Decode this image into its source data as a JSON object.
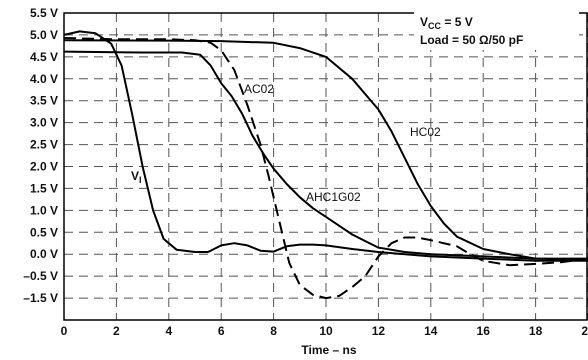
{
  "chart_data": {
    "type": "line",
    "xlabel": "Time – ns",
    "ylabel": "",
    "xlim": [
      0,
      20
    ],
    "ylim": [
      -2.5,
      5.5
    ],
    "x_ticks": [
      "0",
      "2",
      "4",
      "6",
      "8",
      "10",
      "12",
      "14",
      "16",
      "18",
      "20"
    ],
    "y_ticks": [
      "5.5 V",
      "5.0 V",
      "4.5 V",
      "4.0 V",
      "3.5 V",
      "3.0 V",
      "2.5 V",
      "2.0 V",
      "1.5 V",
      "1.0 V",
      "0.5 V",
      "0.0 V",
      "–0.5 V",
      "–1.5 V"
    ],
    "grid": true,
    "conditions": {
      "vcc_prefix": "V",
      "vcc_sub": "CC",
      "vcc_value": " = 5 V",
      "load": "Load = 50 Ω/50 pF"
    },
    "series": [
      {
        "name": "VI",
        "label_main": "V",
        "label_sub": "I",
        "style": "solid",
        "points": [
          [
            0,
            5.0
          ],
          [
            0.6,
            5.08
          ],
          [
            1.2,
            5.04
          ],
          [
            1.8,
            4.8
          ],
          [
            2.2,
            4.3
          ],
          [
            2.6,
            3.2
          ],
          [
            3.0,
            2.0
          ],
          [
            3.4,
            1.0
          ],
          [
            3.8,
            0.35
          ],
          [
            4.3,
            0.1
          ],
          [
            5.0,
            0.05
          ],
          [
            5.5,
            0.05
          ],
          [
            6.0,
            0.2
          ],
          [
            6.5,
            0.25
          ],
          [
            7.0,
            0.2
          ],
          [
            7.5,
            0.08
          ],
          [
            8.0,
            0.06
          ],
          [
            8.5,
            0.18
          ],
          [
            9.0,
            0.22
          ],
          [
            9.5,
            0.22
          ],
          [
            10.0,
            0.2
          ],
          [
            11.0,
            0.12
          ],
          [
            12.0,
            0.05
          ],
          [
            14.0,
            -0.05
          ],
          [
            16.0,
            -0.1
          ],
          [
            18.0,
            -0.15
          ],
          [
            20.0,
            -0.15
          ]
        ]
      },
      {
        "name": "AC02",
        "label_main": "AC02",
        "style": "dashed",
        "points": [
          [
            0,
            4.93
          ],
          [
            2.0,
            4.9
          ],
          [
            4.0,
            4.9
          ],
          [
            5.0,
            4.88
          ],
          [
            5.6,
            4.82
          ],
          [
            6.0,
            4.65
          ],
          [
            6.5,
            4.2
          ],
          [
            7.0,
            3.4
          ],
          [
            7.5,
            2.5
          ],
          [
            7.8,
            1.8
          ],
          [
            8.2,
            0.8
          ],
          [
            8.6,
            -0.2
          ],
          [
            9.0,
            -0.9
          ],
          [
            9.5,
            -1.35
          ],
          [
            10.0,
            -1.5
          ],
          [
            10.5,
            -1.4
          ],
          [
            11.0,
            -1.0
          ],
          [
            11.5,
            -0.5
          ],
          [
            12.0,
            -0.05
          ],
          [
            12.5,
            0.25
          ],
          [
            13.0,
            0.38
          ],
          [
            13.5,
            0.38
          ],
          [
            14.0,
            0.32
          ],
          [
            15.0,
            0.18
          ],
          [
            15.5,
            0.0
          ],
          [
            16.0,
            -0.15
          ],
          [
            17.0,
            -0.25
          ],
          [
            18.0,
            -0.22
          ],
          [
            19.0,
            -0.18
          ],
          [
            20.0,
            -0.1
          ]
        ]
      },
      {
        "name": "AHC1G02",
        "label_main": "AHC1G02",
        "style": "solid",
        "points": [
          [
            0,
            4.62
          ],
          [
            3.0,
            4.6
          ],
          [
            4.5,
            4.6
          ],
          [
            5.2,
            4.55
          ],
          [
            5.6,
            4.3
          ],
          [
            6.0,
            3.9
          ],
          [
            6.4,
            3.6
          ],
          [
            6.8,
            3.2
          ],
          [
            7.2,
            2.7
          ],
          [
            7.6,
            2.3
          ],
          [
            8.0,
            1.95
          ],
          [
            8.5,
            1.6
          ],
          [
            9.0,
            1.3
          ],
          [
            9.5,
            1.05
          ],
          [
            10.0,
            0.85
          ],
          [
            10.5,
            0.65
          ],
          [
            11.0,
            0.45
          ],
          [
            11.5,
            0.3
          ],
          [
            12.0,
            0.15
          ],
          [
            13.0,
            0.05
          ],
          [
            14.0,
            0.0
          ],
          [
            16.0,
            -0.05
          ],
          [
            18.0,
            -0.1
          ],
          [
            20.0,
            -0.1
          ]
        ]
      },
      {
        "name": "HC02",
        "label_main": "HC02",
        "style": "solid",
        "points": [
          [
            0,
            4.88
          ],
          [
            4.0,
            4.87
          ],
          [
            6.0,
            4.86
          ],
          [
            8.0,
            4.82
          ],
          [
            9.0,
            4.7
          ],
          [
            10.0,
            4.5
          ],
          [
            11.0,
            4.0
          ],
          [
            12.0,
            3.3
          ],
          [
            12.5,
            2.8
          ],
          [
            13.0,
            2.2
          ],
          [
            13.5,
            1.6
          ],
          [
            14.0,
            1.1
          ],
          [
            14.5,
            0.7
          ],
          [
            15.0,
            0.4
          ],
          [
            16.0,
            0.12
          ],
          [
            17.0,
            0.0
          ],
          [
            18.0,
            -0.1
          ],
          [
            19.0,
            -0.12
          ],
          [
            20.0,
            -0.12
          ]
        ]
      }
    ],
    "annotations": [
      "AC02",
      "HC02",
      "AHC1G02"
    ]
  }
}
